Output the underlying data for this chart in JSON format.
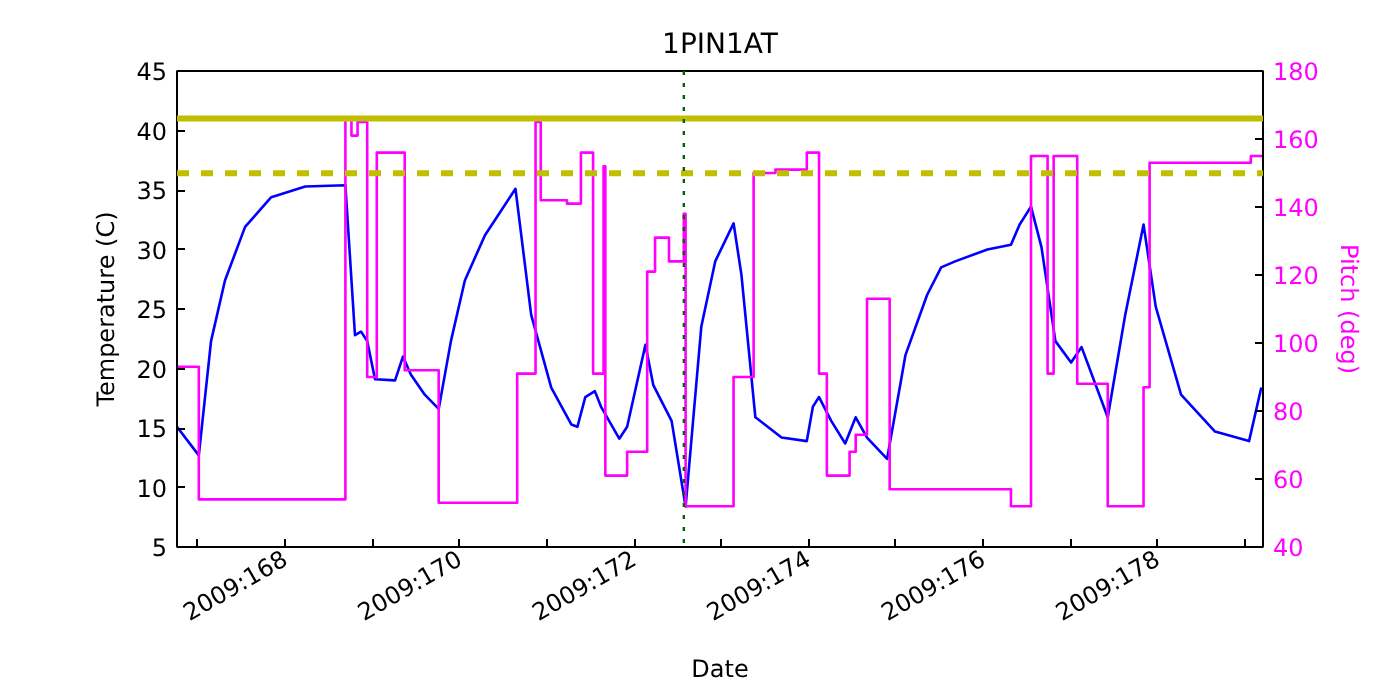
{
  "chart_data": {
    "type": "line",
    "title": "1PIN1AT",
    "xlabel": "Date",
    "ylabel": "Temperature (C)",
    "y2label": "Pitch (deg)",
    "xlim": [
      "2009-06-15T18:14",
      "2009-06-28T05:02"
    ],
    "ylim": [
      5,
      45
    ],
    "y2lim": [
      40,
      180
    ],
    "xticks": [
      {
        "value": "2009-06-16",
        "label": null
      },
      {
        "value": "2009-06-17",
        "label": "2009:168"
      },
      {
        "value": "2009-06-18",
        "label": null
      },
      {
        "value": "2009-06-19",
        "label": "2009:170"
      },
      {
        "value": "2009-06-20",
        "label": null
      },
      {
        "value": "2009-06-21",
        "label": "2009:172"
      },
      {
        "value": "2009-06-22",
        "label": null
      },
      {
        "value": "2009-06-23",
        "label": "2009:174"
      },
      {
        "value": "2009-06-24",
        "label": null
      },
      {
        "value": "2009-06-25",
        "label": "2009:176"
      },
      {
        "value": "2009-06-26",
        "label": null
      },
      {
        "value": "2009-06-27",
        "label": "2009:178"
      },
      {
        "value": "2009-06-28",
        "label": null
      }
    ],
    "yticks": [
      5,
      10,
      15,
      20,
      25,
      30,
      35,
      40,
      45
    ],
    "y2ticks": [
      40,
      60,
      80,
      100,
      120,
      140,
      160,
      180
    ],
    "series": [
      {
        "color": "#0000ff",
        "x": [
          "2009-06-15T18:14",
          "2009-06-16T00:14",
          "2009-06-16T03:36",
          "2009-06-16T07:26",
          "2009-06-16T12:58",
          "2009-06-16T20:10",
          "2009-06-17T05:31",
          "2009-06-17T16:34",
          "2009-06-17T19:12",
          "2009-06-17T20:53",
          "2009-06-17T22:34",
          "2009-06-18T00:43",
          "2009-06-18T06:14",
          "2009-06-18T08:24",
          "2009-06-18T10:34",
          "2009-06-18T14:24",
          "2009-06-18T18:14",
          "2009-06-18T21:36",
          "2009-06-19T01:26",
          "2009-06-19T06:58",
          "2009-06-19T15:22",
          "2009-06-19T19:41",
          "2009-06-20T01:12",
          "2009-06-20T06:43",
          "2009-06-20T08:24",
          "2009-06-20T10:34",
          "2009-06-20T13:12",
          "2009-06-20T14:53",
          "2009-06-20T19:55",
          "2009-06-20T22:05",
          "2009-06-21T03:07",
          "2009-06-21T05:17",
          "2009-06-21T10:19",
          "2009-06-21T14:10",
          "2009-06-21T18:29",
          "2009-06-21T22:19",
          "2009-06-22T03:22",
          "2009-06-22T05:31",
          "2009-06-22T09:22",
          "2009-06-22T16:34",
          "2009-06-22T23:31",
          "2009-06-23T01:12",
          "2009-06-23T02:53",
          "2009-06-23T06:14",
          "2009-06-23T10:05",
          "2009-06-23T12:58",
          "2009-06-23T16:05",
          "2009-06-23T21:36",
          "2009-06-24T01:26",
          "2009-06-24T02:38",
          "2009-06-24T08:38",
          "2009-06-24T12:29",
          "2009-06-24T16:19",
          "2009-06-25T01:12",
          "2009-06-25T07:41",
          "2009-06-25T10:05",
          "2009-06-25T13:12",
          "2009-06-25T16:05",
          "2009-06-25T19:55",
          "2009-06-26T00:14",
          "2009-06-26T03:07",
          "2009-06-26T10:19",
          "2009-06-26T15:07",
          "2009-06-26T20:10",
          "2009-06-26T23:31",
          "2009-06-27T06:29",
          "2009-06-27T15:50",
          "2009-06-28T01:12",
          "2009-06-28T04:34"
        ],
        "values": [
          15.1,
          12.7,
          22.3,
          27.4,
          31.9,
          34.4,
          35.3,
          35.4,
          22.8,
          23.1,
          22.3,
          19.1,
          19.0,
          21.0,
          19.5,
          17.8,
          16.6,
          22.3,
          27.4,
          31.2,
          35.1,
          24.5,
          18.4,
          15.3,
          15.1,
          17.6,
          18.1,
          16.8,
          14.1,
          15.1,
          22.0,
          18.6,
          15.6,
          8.4,
          23.5,
          29.0,
          32.2,
          27.9,
          15.9,
          14.2,
          13.9,
          16.8,
          17.6,
          15.6,
          13.7,
          15.9,
          14.2,
          12.4,
          19.0,
          21.1,
          26.2,
          28.5,
          29.0,
          30.0,
          30.4,
          32.1,
          33.6,
          30.2,
          22.3,
          20.5,
          21.8,
          15.9,
          24.5,
          32.1,
          25.2,
          17.8,
          14.7,
          13.9,
          18.4
        ]
      },
      {
        "type": "step",
        "axis": "y2",
        "color": "#ff00ff",
        "x": [
          "2009-06-15T18:14",
          "2009-06-16T00:14",
          "2009-06-17T16:34",
          "2009-06-17T18:14",
          "2009-06-17T19:55",
          "2009-06-17T22:34",
          "2009-06-18T01:12",
          "2009-06-18T08:53",
          "2009-06-18T18:14",
          "2009-06-19T15:50",
          "2009-06-19T20:53",
          "2009-06-19T22:19",
          "2009-06-20T05:31",
          "2009-06-20T09:22",
          "2009-06-20T12:43",
          "2009-06-20T15:36",
          "2009-06-20T16:05",
          "2009-06-20T22:05",
          "2009-06-21T03:36",
          "2009-06-21T05:46",
          "2009-06-21T09:36",
          "2009-06-21T13:41",
          "2009-06-21T14:10",
          "2009-06-22T03:22",
          "2009-06-22T08:53",
          "2009-06-22T14:53",
          "2009-06-22T23:31",
          "2009-06-23T02:53",
          "2009-06-23T05:02",
          "2009-06-23T11:17",
          "2009-06-23T12:58",
          "2009-06-23T16:05",
          "2009-06-23T22:19",
          "2009-06-25T07:41",
          "2009-06-25T13:12",
          "2009-06-25T17:46",
          "2009-06-25T19:26",
          "2009-06-26T01:55",
          "2009-06-26T10:19",
          "2009-06-26T20:10",
          "2009-06-26T21:50",
          "2009-06-28T01:41",
          "2009-06-28T05:02"
        ],
        "values": [
          93,
          54,
          166,
          161,
          165,
          90,
          156,
          92,
          53,
          91,
          165,
          142,
          141,
          156,
          91,
          152,
          61,
          68,
          121,
          131,
          124,
          138,
          52,
          90,
          150,
          151,
          156,
          91,
          61,
          68,
          73,
          113,
          57,
          52,
          155,
          91,
          155,
          88,
          52,
          87,
          153,
          155,
          155
        ]
      }
    ],
    "ref_lines": [
      {
        "axis": "y",
        "value": 41,
        "color": "#bfbf00",
        "line_style": "solid"
      },
      {
        "axis": "y",
        "value": 36.4,
        "color": "#bfbf00",
        "line_style": "dashed"
      },
      {
        "axis": "x",
        "value": "2009-06-21T13:41",
        "color": "#006400",
        "line_style": "dotted"
      }
    ]
  }
}
